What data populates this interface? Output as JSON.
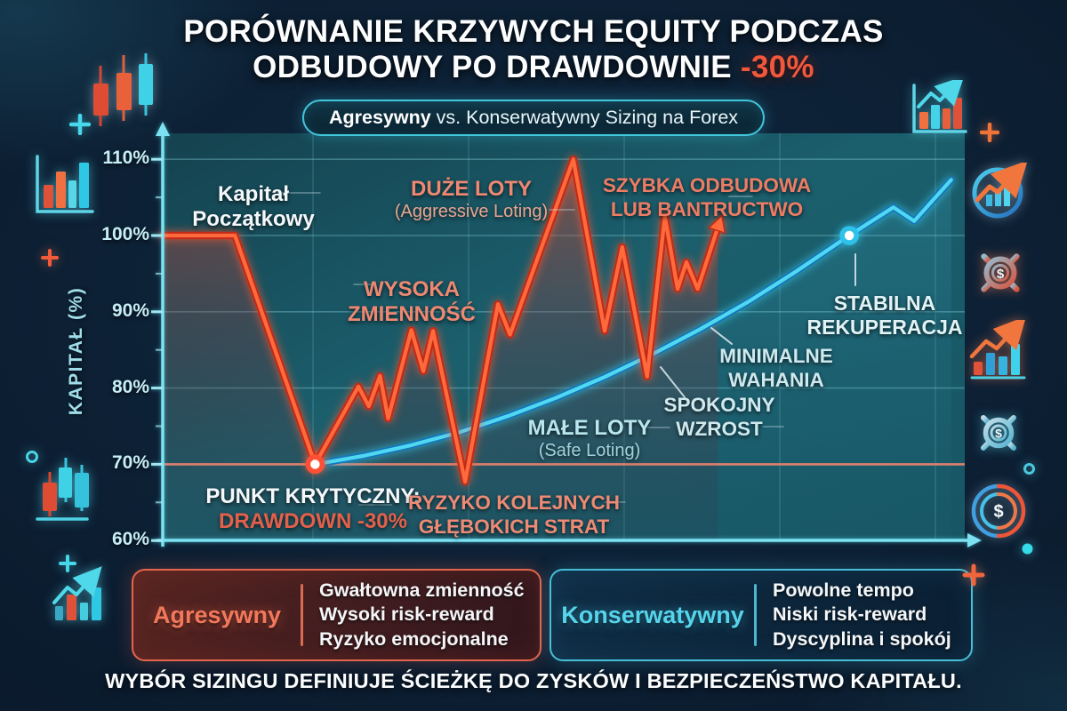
{
  "title": {
    "line1": "PORÓWNANIE KRZYWYCH EQUITY PODCZAS",
    "line2": "ODBUDOWY PO DRAWDOWNIE",
    "highlight": "-30%"
  },
  "subtitle": {
    "bold": "Agresywny",
    "rest": " vs. Konserwatywny Sizing na Forex"
  },
  "chart_data": {
    "type": "line",
    "title": "Porównanie krzywych equity podczas odbudowy po drawdownie -30%",
    "ylabel": "KAPITAŁ (%)",
    "y_ticks": [
      {
        "label": "110%",
        "value": 110
      },
      {
        "label": "100%",
        "value": 100
      },
      {
        "label": "90%",
        "value": 90
      },
      {
        "label": "80%",
        "value": 80
      },
      {
        "label": "70%",
        "value": 70
      },
      {
        "label": "60%",
        "value": 60
      }
    ],
    "ylim": [
      60,
      113
    ],
    "x_range": [
      0,
      100
    ],
    "grid": true,
    "legend_position": "bottom",
    "reference_line": {
      "value": 70,
      "color": "#e8826f"
    },
    "series": [
      {
        "name": "Agresywny (duże loty)",
        "color": "#ff5a38",
        "end_arrow": true,
        "marker": {
          "x": 19,
          "v": 70
        },
        "points": [
          [
            0,
            100
          ],
          [
            9,
            100
          ],
          [
            19,
            70
          ],
          [
            24.4,
            80.2
          ],
          [
            25.7,
            77.6
          ],
          [
            27.1,
            81.6
          ],
          [
            28.1,
            76
          ],
          [
            31,
            87.6
          ],
          [
            32.5,
            82.2
          ],
          [
            33.7,
            87.5
          ],
          [
            37.7,
            67.7
          ],
          [
            41.8,
            91
          ],
          [
            43.3,
            87
          ],
          [
            51.2,
            110
          ],
          [
            55.1,
            87.5
          ],
          [
            57.3,
            98.5
          ],
          [
            60.4,
            81.5
          ],
          [
            62.6,
            102.5
          ],
          [
            64.2,
            93
          ],
          [
            65.3,
            96.5
          ],
          [
            66.7,
            93
          ],
          [
            69.2,
            101
          ]
        ]
      },
      {
        "name": "Konserwatywny (małe loty)",
        "color": "#41d2f0",
        "end_arrow": false,
        "marker": {
          "x": 85.6,
          "v": 100
        },
        "points": [
          [
            19,
            70
          ],
          [
            25,
            71.1
          ],
          [
            31,
            72.5
          ],
          [
            37,
            74.2
          ],
          [
            43,
            76.3
          ],
          [
            49,
            78.7
          ],
          [
            55,
            81.4
          ],
          [
            61,
            84.4
          ],
          [
            67,
            87.7
          ],
          [
            73,
            91.3
          ],
          [
            79,
            95.3
          ],
          [
            85.6,
            100
          ],
          [
            91.1,
            103.7
          ],
          [
            93.7,
            101.9
          ],
          [
            98.3,
            107.3
          ]
        ]
      }
    ],
    "annotations": {
      "kapital": {
        "lines": [
          "Kapitał",
          "Początkowy"
        ]
      },
      "duze_loty": {
        "lines": [
          "DUŻE LOTY",
          "(Aggressive Loting)"
        ]
      },
      "wysoka": {
        "lines": [
          "WYSOKA",
          "ZMIENNOŚĆ"
        ]
      },
      "szybka": {
        "lines": [
          "SZYBKA ODBUDOWA",
          "LUB BANTRUCTWO"
        ]
      },
      "punkt": {
        "lines": [
          "PUNKT KRYTYCZNY:",
          "DRAWDOWN -30%"
        ]
      },
      "ryzyko": {
        "lines": [
          "RYZYKO KOLEJNYCH",
          "GŁĘBOKICH STRAT"
        ]
      },
      "male_loty": {
        "lines": [
          "MAŁE LOTY",
          "(Safe Loting)"
        ]
      },
      "spokojny": {
        "lines": [
          "SPOKOJNY",
          "WZROST"
        ]
      },
      "minimalne": {
        "lines": [
          "MINIMALNE",
          "WAHANIA"
        ]
      },
      "stabilna": {
        "lines": [
          "STABILNA",
          "REKUPERACJA"
        ]
      }
    }
  },
  "legend": {
    "aggressive": {
      "name": "Agresywny",
      "color": "#f2785c",
      "items": [
        "Gwałtowna zmienność",
        "Wysoki risk-reward",
        "Ryzyko emocjonalne"
      ]
    },
    "conservative": {
      "name": "Konserwatywny",
      "color": "#56d4ec",
      "items": [
        "Powolne tempo",
        "Niski risk-reward",
        "Dyscyplina i spokój"
      ]
    }
  },
  "footer": "WYBÓR SIZINGU DEFINIUJE ŚCIEŻKĘ DO ZYSKÓW I BEZPIECZEŃSTWO KAPITAŁU.",
  "icons": {
    "dollar_glyph": "$",
    "decor": [
      "candlestick-chart-icon",
      "plus-icon",
      "bar-chart-icon",
      "plus-icon",
      "circle-icon",
      "candlestick-chart-icon",
      "plus-icon",
      "growth-bar-chart-icon",
      "growth-bar-chart-icon",
      "plus-icon",
      "circle-growth-icon",
      "gear-dollar-icon",
      "growth-bar-chart-icon",
      "gear-dollar-icon",
      "circle-icon",
      "target-dollar-icon",
      "dot-icon",
      "plus-icon"
    ]
  },
  "colors": {
    "aggressive": "#ff5a38",
    "conservative": "#41d2f0",
    "reference": "#e8826f",
    "axis": "#7be2f2",
    "accent": "#f2573b"
  }
}
